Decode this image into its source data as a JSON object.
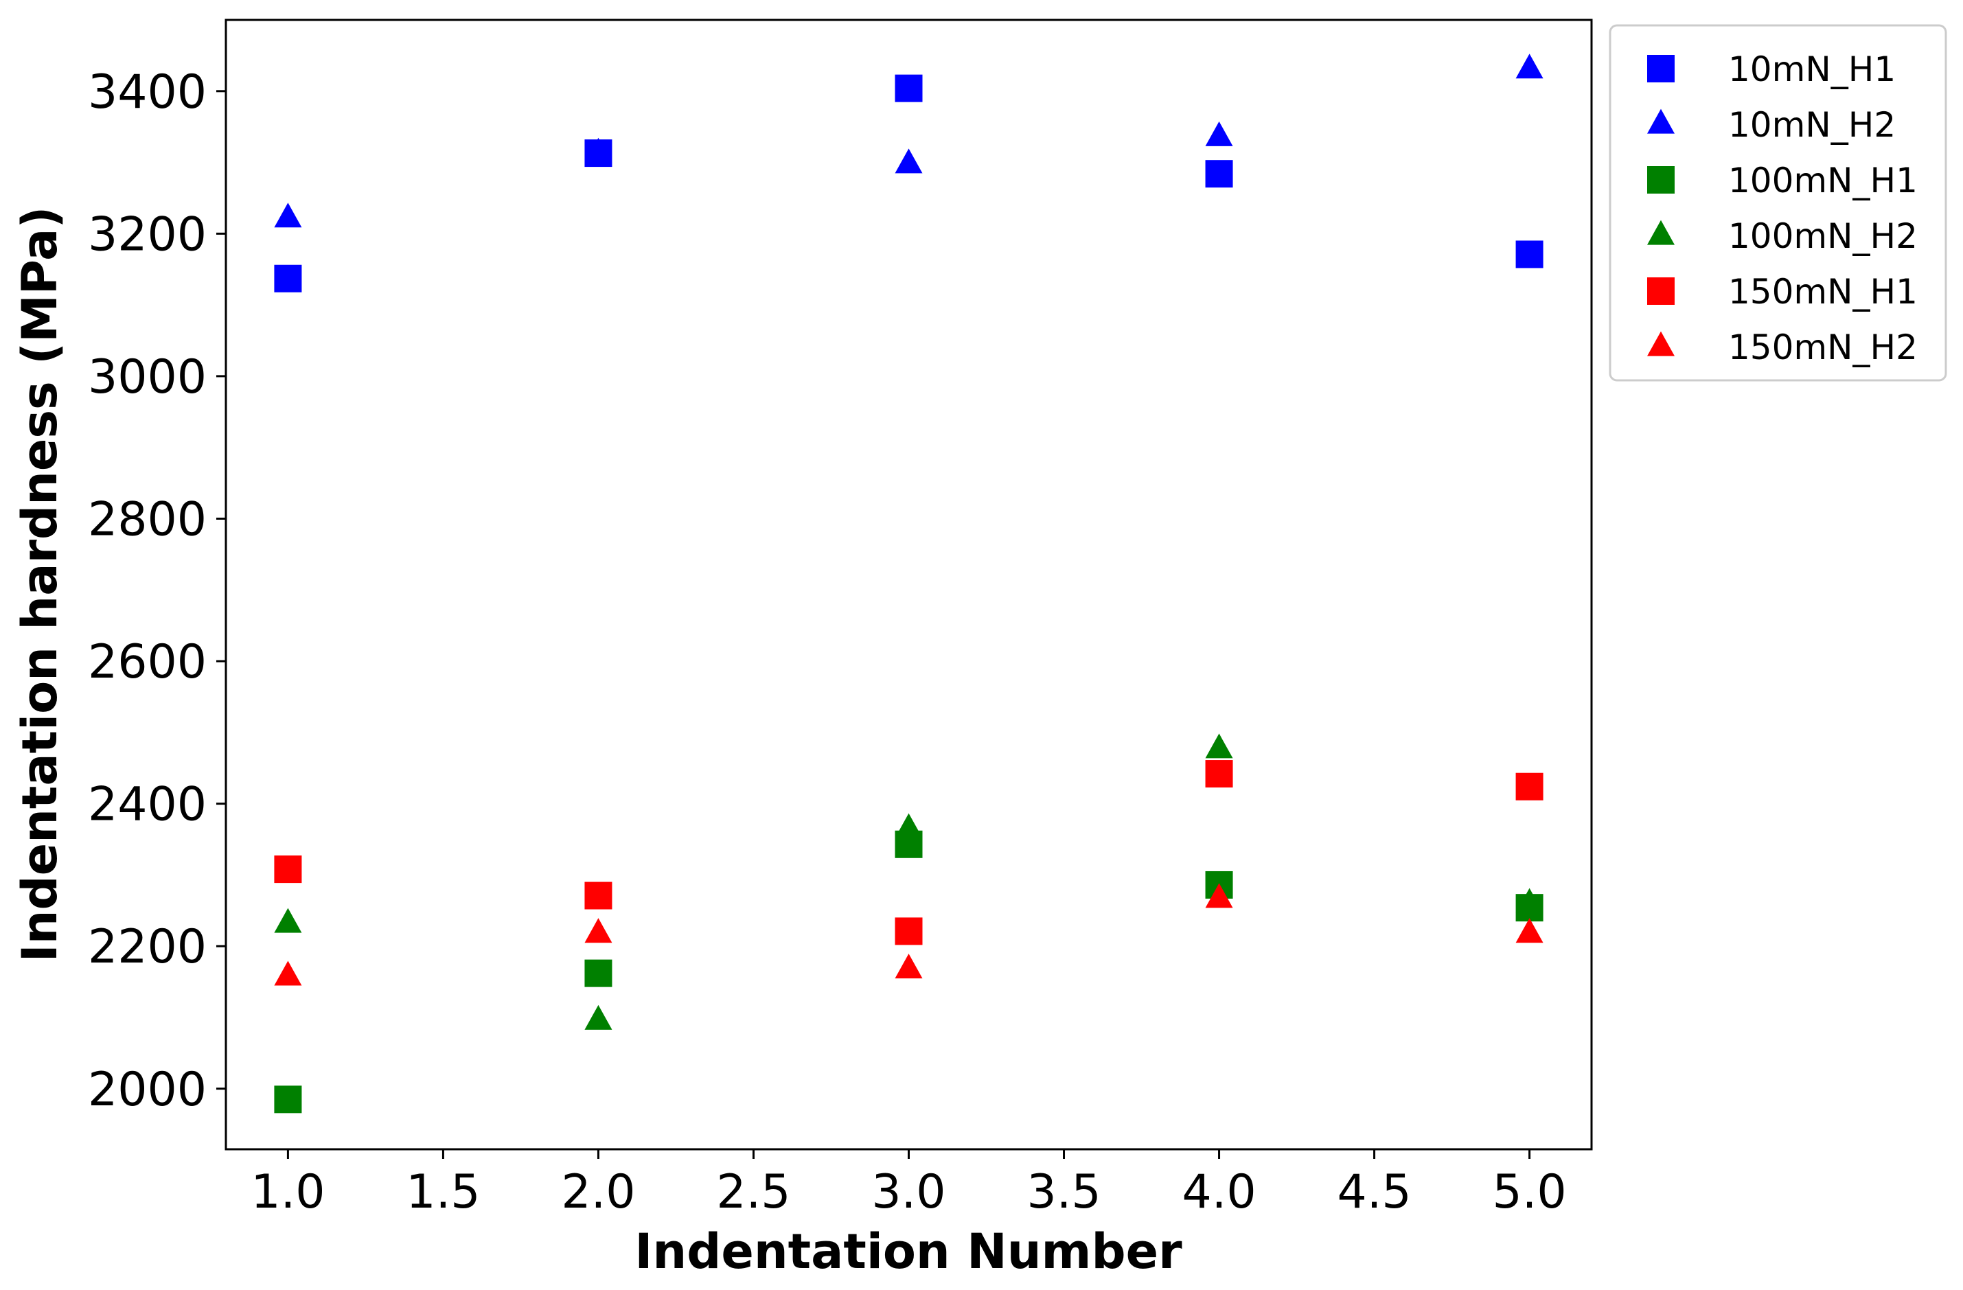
{
  "chart_data": {
    "type": "scatter",
    "title": "",
    "xlabel": "Indentation Number",
    "ylabel": "Indentation hardness (MPa)",
    "xlim": [
      0.8,
      5.2
    ],
    "ylim": [
      1915,
      3500
    ],
    "xticks": [
      1.0,
      1.5,
      2.0,
      2.5,
      3.0,
      3.5,
      4.0,
      4.5,
      5.0
    ],
    "xtick_labels": [
      "1.0",
      "1.5",
      "2.0",
      "2.5",
      "3.0",
      "3.5",
      "4.0",
      "4.5",
      "5.0"
    ],
    "yticks": [
      2000,
      2200,
      2400,
      2600,
      2800,
      3000,
      3200,
      3400
    ],
    "ytick_labels": [
      "2000",
      "2200",
      "2400",
      "2600",
      "2800",
      "3000",
      "3200",
      "3400"
    ],
    "grid": false,
    "legend_position": "outside-top-right",
    "series": [
      {
        "name": "10mN_H1",
        "marker": "square",
        "color": "#0000ff",
        "x": [
          1,
          2,
          3,
          4,
          5
        ],
        "y": [
          3137,
          3313,
          3404,
          3284,
          3171
        ]
      },
      {
        "name": "10mN_H2",
        "marker": "triangle",
        "color": "#0000ff",
        "x": [
          1,
          2,
          3,
          4,
          5
        ],
        "y": [
          3222,
          3313,
          3298,
          3336,
          3431
        ]
      },
      {
        "name": "100mN_H1",
        "marker": "square",
        "color": "#008000",
        "x": [
          1,
          2,
          3,
          4,
          5
        ],
        "y": [
          1985,
          2162,
          2343,
          2286,
          2254
        ]
      },
      {
        "name": "100mN_H2",
        "marker": "triangle",
        "color": "#008000",
        "x": [
          1,
          2,
          3,
          4,
          5
        ],
        "y": [
          2232,
          2096,
          2365,
          2477,
          2260
        ]
      },
      {
        "name": "150mN_H1",
        "marker": "square",
        "color": "#ff0000",
        "x": [
          1,
          2,
          3,
          4,
          5
        ],
        "y": [
          2308,
          2271,
          2221,
          2442,
          2424
        ]
      },
      {
        "name": "150mN_H2",
        "marker": "triangle",
        "color": "#ff0000",
        "x": [
          1,
          2,
          3,
          4,
          5
        ],
        "y": [
          2158,
          2218,
          2168,
          2267,
          2218
        ]
      }
    ]
  }
}
